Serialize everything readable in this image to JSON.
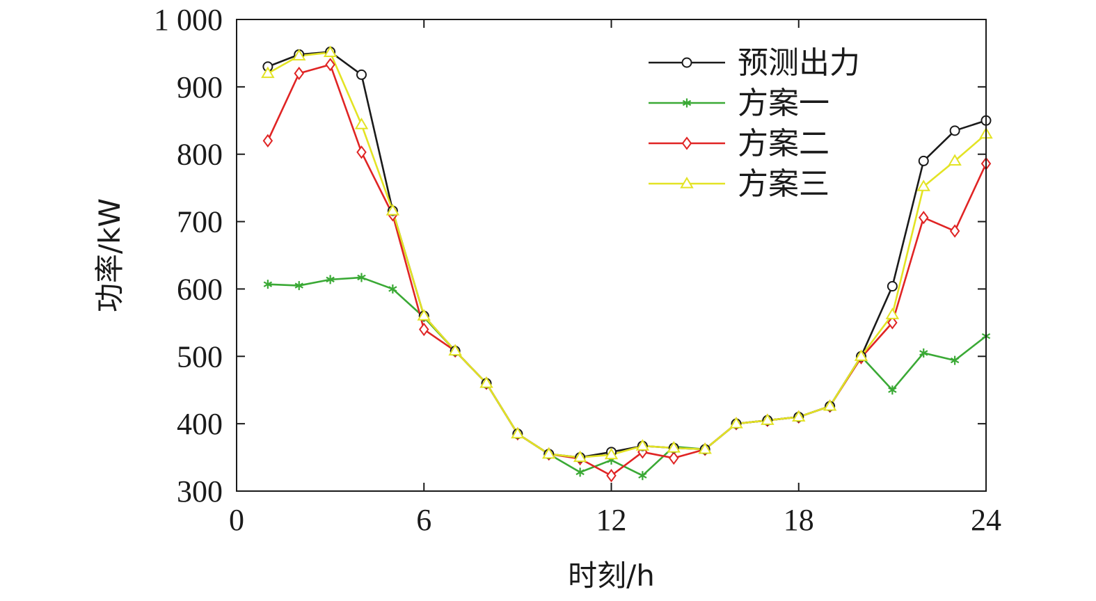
{
  "chart_data": {
    "type": "line",
    "xlabel": "时刻/h",
    "ylabel": "功率/kW",
    "xlim": [
      0,
      24
    ],
    "ylim": [
      300,
      1000
    ],
    "xticks": [
      0,
      6,
      12,
      18,
      24
    ],
    "yticks": [
      300,
      400,
      500,
      600,
      700,
      800,
      900,
      1000
    ],
    "xtick_labels": [
      "0",
      "6",
      "12",
      "18",
      "24"
    ],
    "ytick_labels": [
      "300",
      "400",
      "500",
      "600",
      "700",
      "800",
      "900",
      "1 000"
    ],
    "grid": false,
    "legend_position": "top-right",
    "x": [
      1,
      2,
      3,
      4,
      5,
      6,
      7,
      8,
      9,
      10,
      11,
      12,
      13,
      14,
      15,
      16,
      17,
      18,
      19,
      20,
      21,
      22,
      23,
      24
    ],
    "series": [
      {
        "name": "预测出力",
        "color": "#1a1a1a",
        "marker": "circle",
        "values": [
          930,
          948,
          952,
          918,
          716,
          560,
          508,
          460,
          385,
          355,
          350,
          358,
          367,
          364,
          362,
          400,
          405,
          410,
          426,
          500,
          604,
          790,
          835,
          850
        ]
      },
      {
        "name": "方案一",
        "color": "#3aa935",
        "marker": "asterisk",
        "values": [
          607,
          605,
          614,
          617,
          600,
          558,
          508,
          460,
          385,
          355,
          328,
          346,
          323,
          366,
          362,
          400,
          405,
          410,
          426,
          500,
          450,
          505,
          494,
          530
        ]
      },
      {
        "name": "方案二",
        "color": "#e02424",
        "marker": "diamond",
        "values": [
          820,
          920,
          933,
          803,
          710,
          540,
          508,
          460,
          385,
          355,
          348,
          323,
          358,
          349,
          362,
          400,
          405,
          410,
          426,
          498,
          550,
          706,
          686,
          786
        ]
      },
      {
        "name": "方案三",
        "color": "#e3e324",
        "marker": "triangle",
        "values": [
          920,
          946,
          951,
          844,
          716,
          560,
          508,
          460,
          385,
          355,
          350,
          354,
          367,
          364,
          362,
          400,
          405,
          410,
          426,
          500,
          562,
          752,
          790,
          830
        ]
      }
    ]
  }
}
